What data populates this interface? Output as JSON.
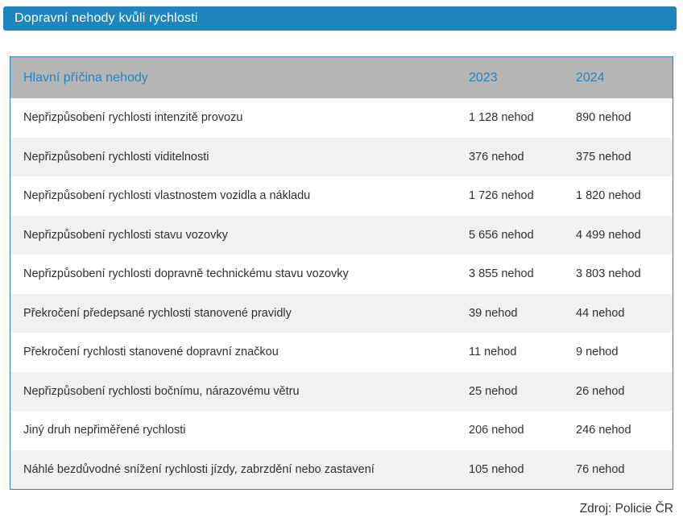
{
  "title_bar": {
    "title": "Dopravní nehody kvůli rychlosti"
  },
  "table": {
    "headers": {
      "cause": "Hlavní příčina nehody",
      "year1": "2023",
      "year2": "2024"
    },
    "rows": [
      {
        "cause": "Nepřizpůsobení rychlosti intenzitě provozu",
        "y2023": "1 128 nehod",
        "y2024": "890 nehod"
      },
      {
        "cause": "Nepřizpůsobení rychlosti viditelnosti",
        "y2023": "376 nehod",
        "y2024": "375 nehod"
      },
      {
        "cause": "Nepřizpůsobení rychlosti vlastnostem vozidla a nákladu",
        "y2023": "1 726 nehod",
        "y2024": "1 820 nehod"
      },
      {
        "cause": "Nepřizpůsobení rychlosti stavu vozovky",
        "y2023": "5 656 nehod",
        "y2024": "4 499 nehod"
      },
      {
        "cause": "Nepřizpůsobení rychlosti dopravně technickému stavu vozovky",
        "y2023": "3 855 nehod",
        "y2024": "3 803 nehod"
      },
      {
        "cause": "Překročení předepsané rychlosti stanovené pravidly",
        "y2023": "39 nehod",
        "y2024": "44 nehod"
      },
      {
        "cause": "Překročení rychlosti stanovené dopravní značkou",
        "y2023": "11 nehod",
        "y2024": "9 nehod"
      },
      {
        "cause": "Nepřizpůsobení rychlosti bočnímu, nárazovému větru",
        "y2023": "25 nehod",
        "y2024": "26 nehod"
      },
      {
        "cause": "Jiný druh nepřiměřené rychlosti",
        "y2023": "206 nehod",
        "y2024": "246 nehod"
      },
      {
        "cause": "Náhlé bezdůvodné snížení rychlosti jízdy, zabrzdění nebo zastavení",
        "y2023": "105 nehod",
        "y2024": "76 nehod"
      }
    ]
  },
  "footer": {
    "source": "Zdroj: Policie ČR"
  },
  "colors": {
    "accent_blue": "#1E86BD",
    "table_border_blue": "#2685BC",
    "header_gray": "#B5B5B5",
    "header_text_blue": "#2584BB",
    "row_alt_gray": "#F1F1F1",
    "text_dark": "#303030"
  },
  "chart_data": {
    "type": "table",
    "title": "Dopravní nehody kvůli rychlosti",
    "columns": [
      "Hlavní příčina nehody",
      "2023",
      "2024"
    ],
    "unit": "nehod",
    "rows": [
      {
        "cause": "Nepřizpůsobení rychlosti intenzitě provozu",
        "values": [
          1128,
          890
        ]
      },
      {
        "cause": "Nepřizpůsobení rychlosti viditelnosti",
        "values": [
          376,
          375
        ]
      },
      {
        "cause": "Nepřizpůsobení rychlosti vlastnostem vozidla a nákladu",
        "values": [
          1726,
          1820
        ]
      },
      {
        "cause": "Nepřizpůsobení rychlosti stavu vozovky",
        "values": [
          5656,
          4499
        ]
      },
      {
        "cause": "Nepřizpůsobení rychlosti dopravně technickému stavu vozovky",
        "values": [
          3855,
          3803
        ]
      },
      {
        "cause": "Překročení předepsané rychlosti stanovené pravidly",
        "values": [
          39,
          44
        ]
      },
      {
        "cause": "Překročení rychlosti stanovené dopravní značkou",
        "values": [
          11,
          9
        ]
      },
      {
        "cause": "Nepřizpůsobení rychlosti bočnímu, nárazovému větru",
        "values": [
          25,
          26
        ]
      },
      {
        "cause": "Jiný druh nepřiměřené rychlosti",
        "values": [
          206,
          246
        ]
      },
      {
        "cause": "Náhlé bezdůvodné snížení rychlosti jízdy, zabrzdění nebo zastavení",
        "values": [
          105,
          76
        ]
      }
    ],
    "source": "Zdroj: Policie ČR"
  }
}
